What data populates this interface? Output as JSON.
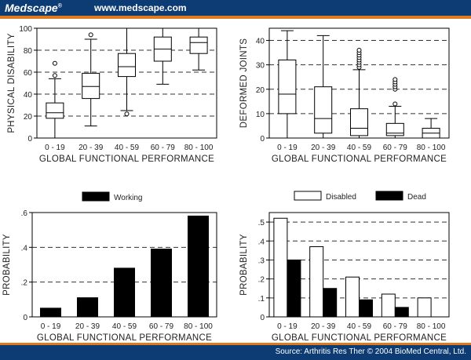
{
  "header": {
    "brand": "Medscape",
    "registered": "®",
    "url": "www.medscape.com"
  },
  "footer": {
    "source": "Source: Arthritis Res Ther © 2004 BioMed Central, Ltd."
  },
  "colors": {
    "header_bg": "#0d3b73",
    "accent": "#e07a1f",
    "bar_dark": "#000000",
    "bar_light": "#ffffff"
  },
  "chart_data": [
    {
      "type": "box",
      "xlabel": "GLOBAL FUNCTIONAL PERFORMANCE",
      "ylabel": "PHYSICAL DISABILITY",
      "categories": [
        "0 - 19",
        "20 - 39",
        "40 - 59",
        "60 - 79",
        "80 - 100"
      ],
      "ylim": [
        0,
        100
      ],
      "yticks": [
        0,
        20,
        40,
        60,
        80,
        100
      ],
      "grid": "dashed horizontal",
      "boxes": [
        {
          "min": 0,
          "q1": 18,
          "median": 23,
          "q3": 32,
          "max": 54,
          "outliers": [
            57,
            68
          ]
        },
        {
          "min": 11,
          "q1": 36,
          "median": 47,
          "q3": 59,
          "max": 90,
          "outliers": [
            94
          ]
        },
        {
          "min": 25,
          "q1": 56,
          "median": 65,
          "q3": 77,
          "max": 100,
          "outliers": [
            22
          ]
        },
        {
          "min": 49,
          "q1": 70,
          "median": 81,
          "q3": 92,
          "max": 100,
          "outliers": []
        },
        {
          "min": 62,
          "q1": 77,
          "median": 87,
          "q3": 92,
          "max": 100,
          "outliers": []
        }
      ]
    },
    {
      "type": "box",
      "xlabel": "GLOBAL FUNCTIONAL PERFORMANCE",
      "ylabel": "DEFORMED JOINTS",
      "categories": [
        "0 - 19",
        "20 - 39",
        "40 - 59",
        "60 - 79",
        "80 - 100"
      ],
      "ylim": [
        0,
        45
      ],
      "yticks": [
        0,
        10,
        20,
        30,
        40
      ],
      "grid": "dashed horizontal",
      "boxes": [
        {
          "min": 0,
          "q1": 10,
          "median": 18,
          "q3": 32,
          "max": 44,
          "outliers": []
        },
        {
          "min": 0,
          "q1": 2,
          "median": 8,
          "q3": 21,
          "max": 42,
          "outliers": []
        },
        {
          "min": 0,
          "q1": 1,
          "median": 4,
          "q3": 12,
          "max": 28,
          "outliers": [
            29,
            30,
            31,
            32,
            33,
            34,
            35,
            36
          ]
        },
        {
          "min": 0,
          "q1": 1,
          "median": 2,
          "q3": 6,
          "max": 13,
          "outliers": [
            14,
            20,
            21,
            22,
            23,
            24
          ]
        },
        {
          "min": 0,
          "q1": 0,
          "median": 2,
          "q3": 4,
          "max": 8,
          "outliers": []
        }
      ]
    },
    {
      "type": "bar",
      "xlabel": "GLOBAL FUNCTIONAL PERFORMANCE",
      "ylabel": "PROBABILITY",
      "categories": [
        "0 - 19",
        "20 - 39",
        "40 - 59",
        "60 - 79",
        "80 - 100"
      ],
      "ylim": [
        0,
        0.6
      ],
      "yticks": [
        0,
        0.2,
        0.4,
        0.6
      ],
      "ytick_labels": [
        "0",
        ".2",
        ".4",
        ".6"
      ],
      "grid": "dashed horizontal",
      "legend": "top",
      "series": [
        {
          "name": "Working",
          "color": "#000000",
          "values": [
            0.05,
            0.11,
            0.28,
            0.39,
            0.58
          ]
        }
      ]
    },
    {
      "type": "bar",
      "xlabel": "GLOBAL FUNCTIONAL PERFORMANCE",
      "ylabel": "PROBABILITY",
      "categories": [
        "0 - 19",
        "20 - 39",
        "40 - 59",
        "60 - 79",
        "80 - 100"
      ],
      "ylim": [
        0,
        0.55
      ],
      "yticks": [
        0,
        0.1,
        0.2,
        0.3,
        0.4,
        0.5
      ],
      "ytick_labels": [
        "0",
        ".1",
        ".2",
        ".3",
        ".4",
        ".5"
      ],
      "grid": "dashed horizontal",
      "legend": "top",
      "series": [
        {
          "name": "Disabled",
          "color": "#ffffff",
          "values": [
            0.52,
            0.37,
            0.21,
            0.12,
            0.1
          ]
        },
        {
          "name": "Dead",
          "color": "#000000",
          "values": [
            0.3,
            0.15,
            0.09,
            0.05,
            0.0
          ]
        }
      ]
    }
  ]
}
